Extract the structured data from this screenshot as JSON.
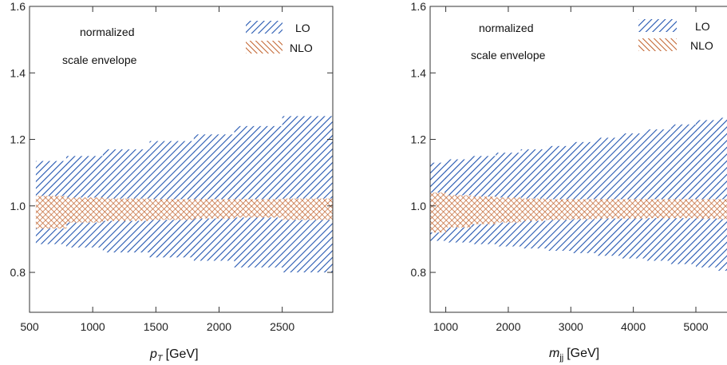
{
  "colors": {
    "lo": "#2255b0",
    "nlo": "#c0602a",
    "frame": "#333333"
  },
  "chart_data": [
    {
      "type": "area",
      "xlabel_main": "p",
      "xlabel_sub": "T",
      "xlabel_unit": "[GeV]",
      "xlim": [
        500,
        2900
      ],
      "ylim": [
        0.68,
        1.6
      ],
      "xticks": [
        500,
        1000,
        1500,
        2000,
        2500
      ],
      "yticks": [
        0.8,
        1.0,
        1.2,
        1.4,
        1.6
      ],
      "annotations": [
        "normalized",
        "scale envelope"
      ],
      "legend": [
        "LO",
        "NLO"
      ],
      "legend_position": "top-right",
      "series": [
        {
          "name": "LO",
          "bands": [
            {
              "x0": 550,
              "x1": 790,
              "hi": 1.135,
              "lo": 0.885
            },
            {
              "x0": 790,
              "x1": 1080,
              "hi": 1.15,
              "lo": 0.875
            },
            {
              "x0": 1080,
              "x1": 1450,
              "hi": 1.17,
              "lo": 0.86
            },
            {
              "x0": 1450,
              "x1": 1800,
              "hi": 1.195,
              "lo": 0.845
            },
            {
              "x0": 1800,
              "x1": 2120,
              "hi": 1.215,
              "lo": 0.835
            },
            {
              "x0": 2120,
              "x1": 2500,
              "hi": 1.24,
              "lo": 0.815
            },
            {
              "x0": 2500,
              "x1": 2900,
              "hi": 1.27,
              "lo": 0.8
            }
          ]
        },
        {
          "name": "NLO",
          "bands": [
            {
              "x0": 550,
              "x1": 790,
              "hi": 1.03,
              "lo": 0.932
            },
            {
              "x0": 790,
              "x1": 1080,
              "hi": 1.025,
              "lo": 0.95
            },
            {
              "x0": 1080,
              "x1": 1450,
              "hi": 1.022,
              "lo": 0.955
            },
            {
              "x0": 1450,
              "x1": 1800,
              "hi": 1.02,
              "lo": 0.958
            },
            {
              "x0": 1800,
              "x1": 2120,
              "hi": 1.02,
              "lo": 0.962
            },
            {
              "x0": 2120,
              "x1": 2500,
              "hi": 1.02,
              "lo": 0.965
            },
            {
              "x0": 2500,
              "x1": 2900,
              "hi": 1.022,
              "lo": 0.958
            }
          ]
        }
      ]
    },
    {
      "type": "area",
      "xlabel_main": "m",
      "xlabel_sub": "jj",
      "xlabel_unit": "[GeV]",
      "xlim": [
        750,
        5600
      ],
      "ylim": [
        0.68,
        1.6
      ],
      "xticks": [
        1000,
        2000,
        3000,
        4000,
        5000
      ],
      "yticks": [
        0.8,
        1.0,
        1.2,
        1.4,
        1.6
      ],
      "annotations": [
        "normalized",
        "scale envelope"
      ],
      "legend": [
        "LO",
        "NLO"
      ],
      "legend_position": "top-right",
      "series": [
        {
          "name": "LO",
          "bands": [
            {
              "x0": 750,
              "x1": 1000,
              "hi": 1.13,
              "lo": 0.895
            },
            {
              "x0": 1000,
              "x1": 1400,
              "hi": 1.14,
              "lo": 0.89
            },
            {
              "x0": 1400,
              "x1": 1800,
              "hi": 1.15,
              "lo": 0.885
            },
            {
              "x0": 1800,
              "x1": 2200,
              "hi": 1.16,
              "lo": 0.878
            },
            {
              "x0": 2200,
              "x1": 2600,
              "hi": 1.17,
              "lo": 0.872
            },
            {
              "x0": 2600,
              "x1": 3000,
              "hi": 1.18,
              "lo": 0.865
            },
            {
              "x0": 3000,
              "x1": 3400,
              "hi": 1.192,
              "lo": 0.858
            },
            {
              "x0": 3400,
              "x1": 3800,
              "hi": 1.205,
              "lo": 0.85
            },
            {
              "x0": 3800,
              "x1": 4200,
              "hi": 1.218,
              "lo": 0.842
            },
            {
              "x0": 4200,
              "x1": 4600,
              "hi": 1.23,
              "lo": 0.835
            },
            {
              "x0": 4600,
              "x1": 5000,
              "hi": 1.245,
              "lo": 0.825
            },
            {
              "x0": 5000,
              "x1": 5350,
              "hi": 1.258,
              "lo": 0.815
            },
            {
              "x0": 5350,
              "x1": 5600,
              "hi": 1.265,
              "lo": 0.805
            }
          ]
        },
        {
          "name": "NLO",
          "bands": [
            {
              "x0": 750,
              "x1": 1000,
              "hi": 1.04,
              "lo": 0.92
            },
            {
              "x0": 1000,
              "x1": 1400,
              "hi": 1.032,
              "lo": 0.935
            },
            {
              "x0": 1400,
              "x1": 1800,
              "hi": 1.028,
              "lo": 0.945
            },
            {
              "x0": 1800,
              "x1": 2200,
              "hi": 1.025,
              "lo": 0.95
            },
            {
              "x0": 2200,
              "x1": 2600,
              "hi": 1.022,
              "lo": 0.955
            },
            {
              "x0": 2600,
              "x1": 3000,
              "hi": 1.02,
              "lo": 0.958
            },
            {
              "x0": 3000,
              "x1": 3400,
              "hi": 1.02,
              "lo": 0.96
            },
            {
              "x0": 3400,
              "x1": 3800,
              "hi": 1.02,
              "lo": 0.962
            },
            {
              "x0": 3800,
              "x1": 4200,
              "hi": 1.02,
              "lo": 0.962
            },
            {
              "x0": 4200,
              "x1": 4600,
              "hi": 1.02,
              "lo": 0.963
            },
            {
              "x0": 4600,
              "x1": 5000,
              "hi": 1.02,
              "lo": 0.963
            },
            {
              "x0": 5000,
              "x1": 5350,
              "hi": 1.02,
              "lo": 0.962
            },
            {
              "x0": 5350,
              "x1": 5600,
              "hi": 1.02,
              "lo": 0.96
            }
          ]
        }
      ]
    }
  ]
}
